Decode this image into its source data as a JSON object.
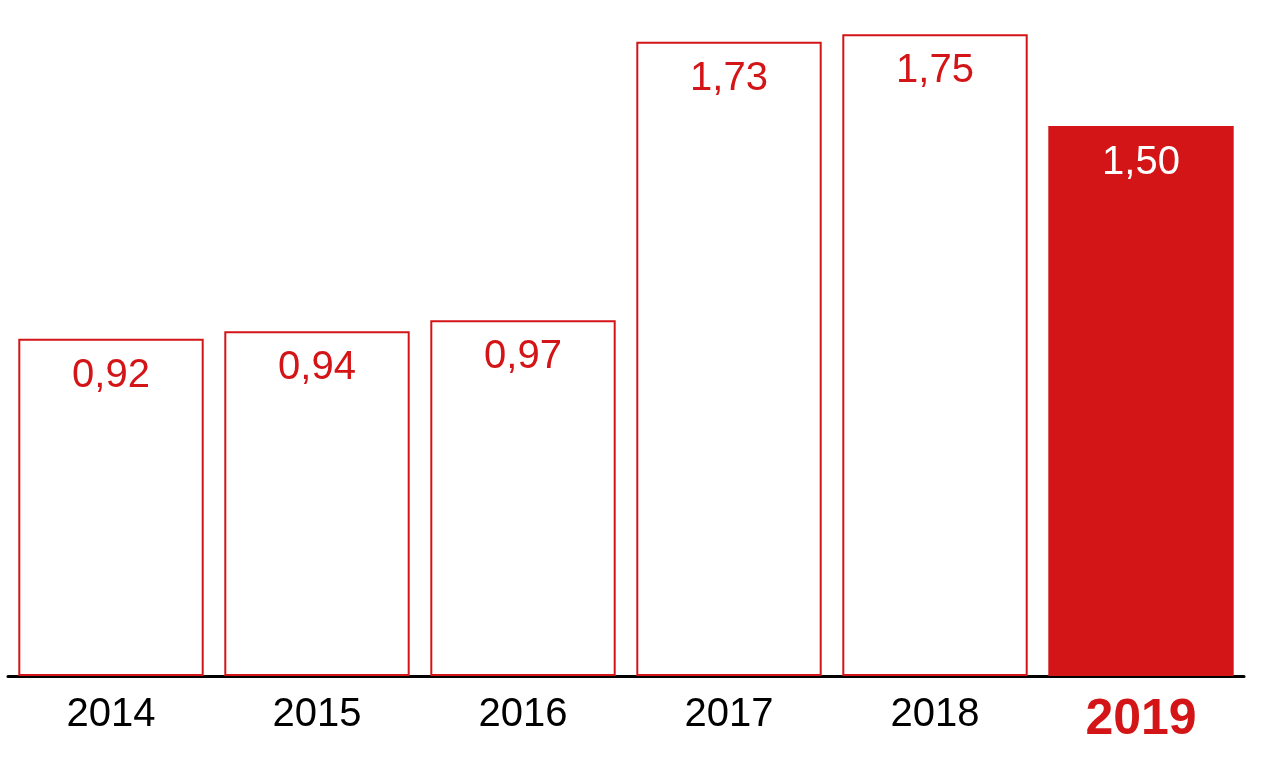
{
  "chart_data": {
    "type": "bar",
    "categories": [
      "2014",
      "2015",
      "2016",
      "2017",
      "2018",
      "2019"
    ],
    "series": [
      {
        "color": "#d41518",
        "colors": [
          "#ffffff",
          "#ffffff",
          "#ffffff",
          "#ffffff",
          "#ffffff",
          "#d41518"
        ],
        "values": [
          0.92,
          0.94,
          0.97,
          1.73,
          1.75,
          1.5
        ],
        "value_labels": [
          "0,92",
          "0,94",
          "0,97",
          "1,73",
          "1,75",
          "1,50"
        ]
      }
    ]
  }
}
